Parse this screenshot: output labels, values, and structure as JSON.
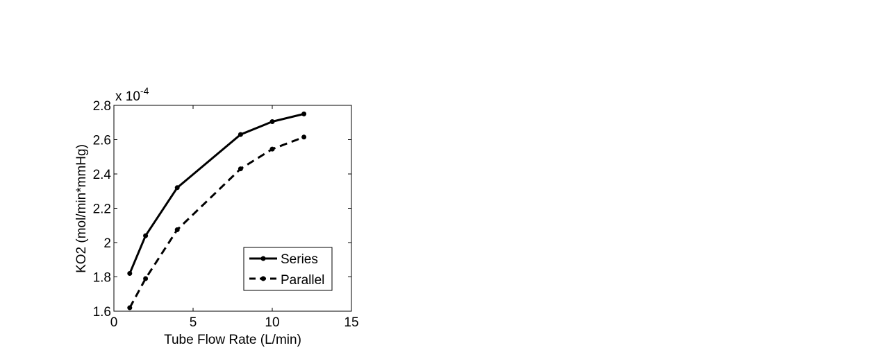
{
  "chart_data": {
    "type": "line",
    "title": "",
    "xlabel": "Tube Flow Rate (L/min)",
    "ylabel": "KO2 (mol/min*mmHg)",
    "multiplier_base": "x 10",
    "multiplier_exp": "-4",
    "xlim": [
      0,
      15
    ],
    "ylim": [
      1.6,
      2.8
    ],
    "xticks": [
      0,
      5,
      10,
      15
    ],
    "xtick_labels": [
      "0",
      "5",
      "10",
      "15"
    ],
    "yticks": [
      1.6,
      1.8,
      2.0,
      2.2,
      2.4,
      2.6,
      2.8
    ],
    "ytick_labels": [
      "1.6",
      "1.8",
      "2",
      "2.2",
      "2.4",
      "2.6",
      "2.8"
    ],
    "grid": false,
    "legend_position": "bottom-right",
    "x": [
      1,
      2,
      4,
      8,
      10,
      12
    ],
    "series": [
      {
        "name": "Series",
        "style": "solid",
        "values": [
          1.82,
          2.04,
          2.32,
          2.63,
          2.705,
          2.75
        ]
      },
      {
        "name": "Parallel",
        "style": "dashed",
        "values": [
          1.62,
          1.79,
          2.075,
          2.43,
          2.545,
          2.615
        ]
      }
    ],
    "line_color": "#000000"
  }
}
